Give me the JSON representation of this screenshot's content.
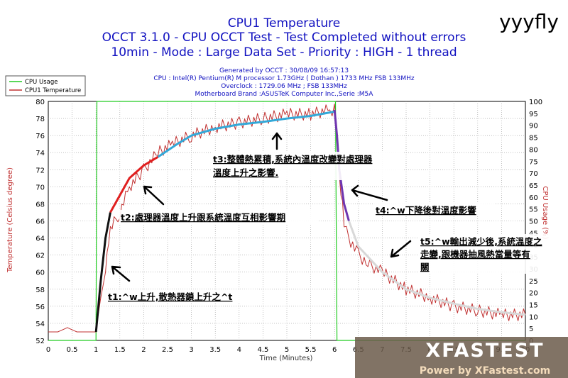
{
  "chart_data": {
    "type": "line",
    "title": "CPU1 Temperature",
    "subtitle_lines": [
      "OCCT 3.1.0 - CPU OCCT Test - Test Completed without errors",
      "10min - Mode : Large Data Set - Priority : HIGH - 1 thread"
    ],
    "info_lines": [
      "Generated by OCCT : 30/08/09 16:57:13",
      "CPU : Intel(R) Pentium(R) M processor 1.73GHz ( Dothan ) 1733 MHz FSB 133MHz",
      "Overclock : 1729.06 MHz ; FSB 133MHz",
      "Motherboard Brand :ASUSTeK Computer Inc.,Serie :M5A"
    ],
    "xlabel": "Time (Minutes)",
    "ylabel": "Temperature (Celsius degree)",
    "y2label": "CPU Usage (%)",
    "xlim": [
      0,
      10
    ],
    "ylim": [
      52,
      80
    ],
    "y2lim": [
      0,
      100
    ],
    "x_ticks": [
      "0",
      "0.5",
      "1",
      "1.5",
      "2",
      "2.5",
      "3",
      "3.5",
      "4",
      "4.5",
      "5",
      "5.5",
      "6",
      "6.5",
      "7",
      "7.5",
      "8",
      "8.5",
      "9",
      "9.5",
      "10"
    ],
    "y_ticks": [
      "52",
      "54",
      "56",
      "58",
      "60",
      "62",
      "64",
      "66",
      "68",
      "70",
      "72",
      "74",
      "76",
      "78",
      "80"
    ],
    "y2_ticks": [
      "0",
      "5",
      "10",
      "15",
      "20",
      "25",
      "30",
      "35",
      "40",
      "45",
      "50",
      "55",
      "60",
      "65",
      "70",
      "75",
      "80",
      "85",
      "90",
      "95",
      "100"
    ],
    "grid": true,
    "legend_position": "top-left",
    "series": [
      {
        "name": "CPU Usage",
        "color": "#22cc22",
        "axis": "right",
        "x": [
          0,
          1.0,
          1.02,
          1.05,
          6.0,
          6.02,
          6.05,
          10
        ],
        "values": [
          0,
          0,
          100,
          100,
          100,
          100,
          0,
          0
        ]
      },
      {
        "name": "CPU1 Temperature",
        "color": "#c03030",
        "axis": "left",
        "x": [
          0,
          0.2,
          0.4,
          0.6,
          0.8,
          1.0,
          1.02,
          1.1,
          1.2,
          1.3,
          1.5,
          1.7,
          2.0,
          2.3,
          2.6,
          3.0,
          3.5,
          4.0,
          4.5,
          5.0,
          5.5,
          5.9,
          6.0,
          6.05,
          6.1,
          6.2,
          6.3,
          6.5,
          6.7,
          7.0,
          7.5,
          8.0,
          8.5,
          9.0,
          9.5,
          10.0
        ],
        "values": [
          53,
          53,
          53.5,
          53,
          53,
          53,
          54,
          57,
          60,
          65,
          67,
          70,
          72,
          74,
          75,
          76,
          77,
          77.5,
          78,
          78.5,
          78.5,
          79,
          79,
          76,
          71,
          66,
          64,
          62,
          61,
          60,
          58,
          57,
          56,
          55.5,
          55,
          55
        ]
      }
    ],
    "phase_curves": [
      {
        "color": "#111111",
        "x": [
          1.0,
          1.05,
          1.1,
          1.2,
          1.3
        ],
        "values": [
          53,
          56,
          59,
          64,
          67
        ]
      },
      {
        "color": "#e02020",
        "x": [
          1.3,
          1.5,
          1.7,
          2.0,
          2.3
        ],
        "values": [
          67,
          69,
          71,
          72.5,
          73.5
        ]
      },
      {
        "color": "#33a8d8",
        "x": [
          2.3,
          2.7,
          3.0,
          3.5,
          4.0,
          4.5,
          5.0,
          5.5,
          6.0
        ],
        "values": [
          73.5,
          75,
          76,
          76.8,
          77.3,
          77.6,
          78.0,
          78.3,
          78.8
        ]
      },
      {
        "color": "#6f35b0",
        "x": [
          6.0,
          6.05,
          6.1,
          6.2,
          6.3
        ],
        "values": [
          79,
          76,
          72,
          68,
          66
        ]
      },
      {
        "color": "#d8d8d8",
        "x": [
          6.3,
          6.5,
          7.0,
          7.5,
          8.0,
          8.5,
          9.0,
          9.5,
          10.0
        ],
        "values": [
          66,
          63,
          60,
          58,
          57,
          56.3,
          55.7,
          55.3,
          55
        ]
      }
    ],
    "annotations": [
      {
        "id": "t1",
        "lines": [
          "t1:^w上升,散熱器鎖上升之^t"
        ]
      },
      {
        "id": "t2",
        "lines": [
          "t2:處理器溫度上升跟系統溫度互相影響期"
        ]
      },
      {
        "id": "t3",
        "lines": [
          "t3:整體熱累積,系統內溫度改變對處理器",
          "溫度上升之影響."
        ]
      },
      {
        "id": "t4",
        "lines": [
          "t4:^w下降後對溫度影響"
        ]
      },
      {
        "id": "t5",
        "lines": [
          "t5:^w輸出減少後,系統溫度之",
          "走變,跟機器抽風熱當量等有",
          "關"
        ]
      }
    ]
  },
  "watermarks": {
    "corner": "yyyfly",
    "brand": "XFASTEST",
    "brand_tagline": "Power by XFastest.com"
  }
}
